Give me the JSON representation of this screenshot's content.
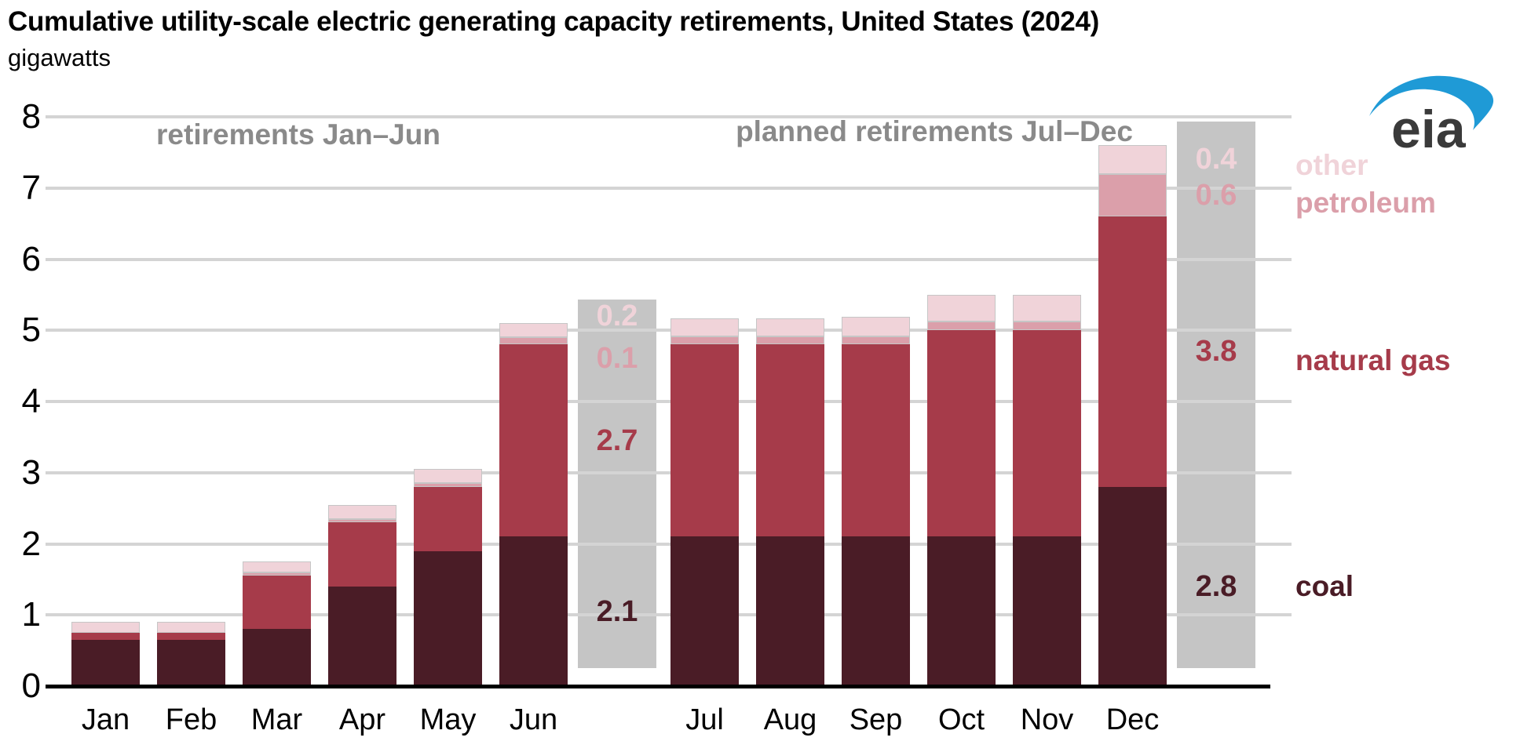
{
  "header": {
    "title": "Cumulative utility-scale electric generating capacity retirements, United States (2024)",
    "subtitle": "gigawatts"
  },
  "branding": {
    "logo_text": "eia",
    "logo_color": "#1f9ad6",
    "logo_text_color": "#3a3a3a"
  },
  "colors": {
    "coal": "#4a1c26",
    "natural_gas": "#a63b4a",
    "petroleum": "#db9faa",
    "other": "#f0d3d9",
    "annotation_box": "#c5c5c5",
    "gridline": "#d4d4d4",
    "section_label": "#8a8a8a",
    "axis": "#000000"
  },
  "chart_data": {
    "type": "bar",
    "stacked": true,
    "title": "Cumulative utility-scale electric generating capacity retirements, United States (2024)",
    "ylabel": "gigawatts",
    "xlabel": "",
    "ylim": [
      0,
      8
    ],
    "yticks": [
      0,
      1,
      2,
      3,
      4,
      5,
      6,
      7,
      8
    ],
    "grid": true,
    "legend_position": "right",
    "categories": [
      "Jan",
      "Feb",
      "Mar",
      "Apr",
      "May",
      "Jun",
      "Jul",
      "Aug",
      "Sep",
      "Oct",
      "Nov",
      "Dec"
    ],
    "series": [
      {
        "name": "coal",
        "color": "#4a1c26",
        "values": [
          0.65,
          0.65,
          0.8,
          1.4,
          1.9,
          2.1,
          2.1,
          2.1,
          2.1,
          2.1,
          2.1,
          2.8
        ]
      },
      {
        "name": "natural gas",
        "color": "#a63b4a",
        "values": [
          0.1,
          0.1,
          0.75,
          0.9,
          0.9,
          2.7,
          2.7,
          2.7,
          2.7,
          2.9,
          2.9,
          3.8
        ]
      },
      {
        "name": "petroleum",
        "color": "#db9faa",
        "values": [
          0.0,
          0.0,
          0.05,
          0.05,
          0.05,
          0.1,
          0.12,
          0.12,
          0.12,
          0.12,
          0.12,
          0.6
        ]
      },
      {
        "name": "other",
        "color": "#f0d3d9",
        "values": [
          0.15,
          0.15,
          0.15,
          0.2,
          0.2,
          0.2,
          0.25,
          0.25,
          0.27,
          0.38,
          0.38,
          0.4
        ]
      }
    ],
    "section_labels": [
      "retirements Jan–Jun",
      "planned retirements Jul–Dec"
    ],
    "annotations": [
      {
        "after_month": "Jun",
        "values": {
          "coal": "2.1",
          "natural gas": "2.7",
          "petroleum": "0.1",
          "other": "0.2"
        }
      },
      {
        "after_month": "Dec",
        "values": {
          "coal": "2.8",
          "natural gas": "3.8",
          "petroleum": "0.6",
          "other": "0.4"
        }
      }
    ],
    "legend_items": [
      "other",
      "petroleum",
      "natural gas",
      "coal"
    ]
  }
}
